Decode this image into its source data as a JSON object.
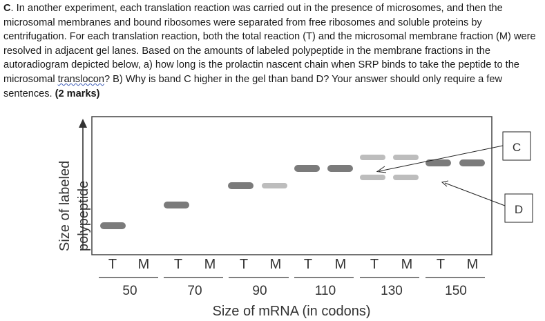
{
  "question": {
    "letter": "C",
    "text_before": ". In another experiment, each translation reaction was carried out in the presence of microsomes, and then the microsomal membranes and bound ribosomes were separated from free ribosomes and soluble proteins by centrifugation. For each translation reaction, both the total reaction (T) and the microsomal membrane fraction (M) were resolved in adjacent gel lanes. Based on the amounts of labeled polypeptide in the membrane fractions in the autoradiogram depicted below, a) how long is the prolactin nascent chain when SRP binds to take the peptide to the microsomal ",
    "squiggled_word": "translocon",
    "text_after": "? B) Why is band C higher in the gel than band D? Your answer should only require a few sentences.  ",
    "marks": "(2 marks)"
  },
  "figure": {
    "y_axis_label_line1": "Size of labeled",
    "y_axis_label_line2": "polypeptide",
    "lane_labels": [
      "T",
      "M",
      "T",
      "M",
      "T",
      "M",
      "T",
      "M",
      "T",
      "M",
      "T",
      "M"
    ],
    "group_labels": [
      "50",
      "70",
      "90",
      "110",
      "130",
      "150"
    ],
    "x_axis_title": "Size of mRNA (in codons)",
    "callout_c": "C",
    "callout_d": "D",
    "colors": {
      "dark_band": "#7b7b7b",
      "light_band": "#bdbdbd",
      "frame": "#444444"
    }
  }
}
